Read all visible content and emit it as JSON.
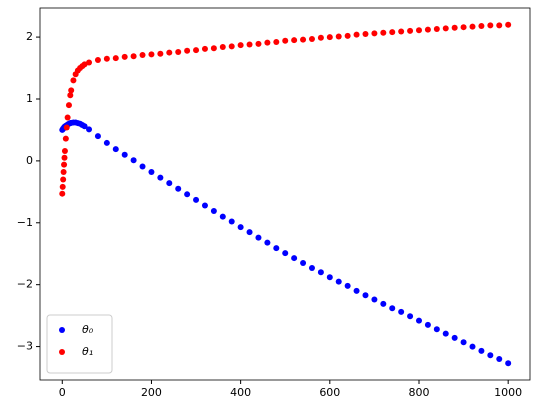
{
  "chart_data": {
    "type": "scatter",
    "x": [
      0,
      1,
      2,
      3,
      4,
      5,
      6,
      8,
      10,
      12,
      15,
      18,
      20,
      25,
      30,
      35,
      40,
      45,
      50,
      60,
      80,
      100,
      120,
      140,
      160,
      180,
      200,
      220,
      240,
      260,
      280,
      300,
      320,
      340,
      360,
      380,
      400,
      420,
      440,
      460,
      480,
      500,
      520,
      540,
      560,
      580,
      600,
      620,
      640,
      660,
      680,
      700,
      720,
      740,
      760,
      780,
      800,
      820,
      840,
      860,
      880,
      900,
      920,
      940,
      960,
      980,
      1000
    ],
    "series": [
      {
        "name": "θ₀",
        "color": "#0000ff",
        "values": [
          0.5,
          0.51,
          0.52,
          0.53,
          0.54,
          0.55,
          0.555,
          0.565,
          0.575,
          0.585,
          0.6,
          0.61,
          0.615,
          0.62,
          0.62,
          0.61,
          0.6,
          0.58,
          0.56,
          0.51,
          0.4,
          0.29,
          0.19,
          0.1,
          0.01,
          -0.09,
          -0.18,
          -0.27,
          -0.36,
          -0.45,
          -0.54,
          -0.63,
          -0.72,
          -0.81,
          -0.9,
          -0.98,
          -1.07,
          -1.15,
          -1.24,
          -1.32,
          -1.41,
          -1.49,
          -1.57,
          -1.65,
          -1.73,
          -1.8,
          -1.88,
          -1.95,
          -2.02,
          -2.1,
          -2.17,
          -2.24,
          -2.31,
          -2.38,
          -2.44,
          -2.51,
          -2.58,
          -2.65,
          -2.72,
          -2.79,
          -2.86,
          -2.93,
          -3.0,
          -3.07,
          -3.14,
          -3.2,
          -3.27
        ]
      },
      {
        "name": "θ₁",
        "color": "#ff0000",
        "values": [
          -0.53,
          -0.42,
          -0.3,
          -0.18,
          -0.06,
          0.05,
          0.16,
          0.36,
          0.54,
          0.7,
          0.9,
          1.06,
          1.14,
          1.3,
          1.4,
          1.46,
          1.5,
          1.53,
          1.56,
          1.59,
          1.63,
          1.65,
          1.66,
          1.68,
          1.69,
          1.71,
          1.72,
          1.73,
          1.75,
          1.76,
          1.78,
          1.79,
          1.81,
          1.82,
          1.84,
          1.85,
          1.87,
          1.88,
          1.89,
          1.91,
          1.92,
          1.94,
          1.95,
          1.96,
          1.97,
          1.99,
          2.0,
          2.01,
          2.02,
          2.04,
          2.05,
          2.06,
          2.07,
          2.08,
          2.09,
          2.1,
          2.11,
          2.12,
          2.13,
          2.14,
          2.15,
          2.16,
          2.17,
          2.18,
          2.19,
          2.19,
          2.2
        ]
      }
    ],
    "xlim": [
      -49.95,
      1048.95
    ],
    "ylim": [
      -3.54,
      2.47
    ],
    "xticks": [
      0,
      200,
      400,
      600,
      800,
      1000
    ],
    "yticks": [
      {
        "value": -3,
        "label": "−3"
      },
      {
        "value": -2,
        "label": "−2"
      },
      {
        "value": -1,
        "label": "−1"
      },
      0,
      1,
      2
    ],
    "legend": "lower left"
  }
}
